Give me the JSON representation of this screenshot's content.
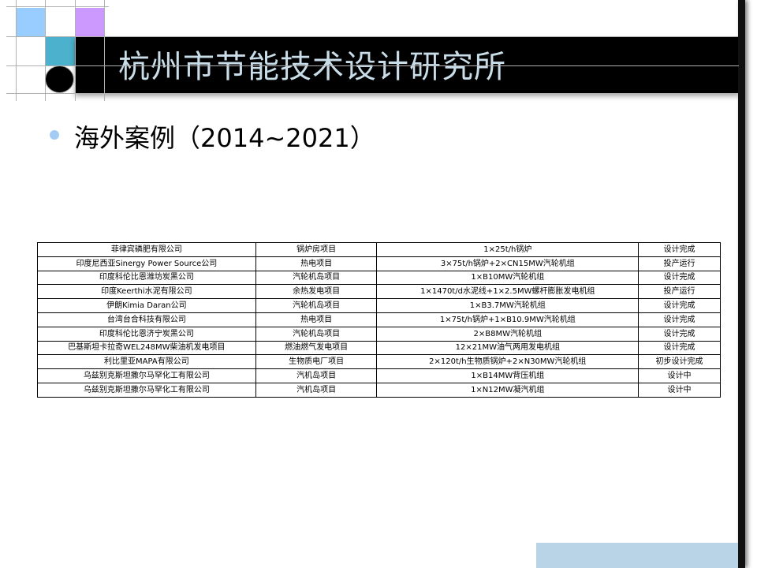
{
  "slide": {
    "title": "杭州市节能技术设计研究所",
    "bullet": "海外案例（2014~2021）",
    "colors": {
      "light_blue": "#99ccff",
      "purple": "#cc99ff",
      "teal": "#4bb1cc",
      "title_bar": "#000000",
      "title_text": "#c9dde9",
      "bullet": "#a3ccf5",
      "footer_block": "#b8d4e6"
    }
  },
  "table": {
    "rows": [
      [
        "菲律宾磷肥有限公司",
        "锅炉房项目",
        "1×25t/h锅炉",
        "设计完成"
      ],
      [
        "印度尼西亚Sinergy Power Source公司",
        "热电项目",
        "3×75t/h锅炉+2×CN15MW汽轮机组",
        "投产运行"
      ],
      [
        "印度科伦比恩潍坊炭黑公司",
        "汽轮机岛项目",
        "1×B10MW汽轮机组",
        "设计完成"
      ],
      [
        "印度Keerthi水泥有限公司",
        "余热发电项目",
        "1×1470t/d水泥线+1×2.5MW螺杆膨胀发电机组",
        "投产运行"
      ],
      [
        "伊朗Kimia Daran公司",
        "汽轮机岛项目",
        "1×B3.7MW汽轮机组",
        "设计完成"
      ],
      [
        "台湾台合科技有限公司",
        "热电项目",
        "1×75t/h锅炉+1×B10.9MW汽轮机组",
        "设计完成"
      ],
      [
        "印度科伦比恩济宁炭黑公司",
        "汽轮机岛项目",
        "2×B8MW汽轮机组",
        "设计完成"
      ],
      [
        "巴基斯坦卡拉奇WEL248MW柴油机发电项目",
        "燃油燃气发电项目",
        "12×21MW油气两用发电机组",
        "设计完成"
      ],
      [
        "利比里亚MAPA有限公司",
        "生物质电厂项目",
        "2×120t/h生物质锅炉+2×N30MW汽轮机组",
        "初步设计完成"
      ],
      [
        "乌兹别克斯坦撒尔马罕化工有限公司",
        "汽机岛项目",
        "1×B14MW背压机组",
        "设计中"
      ],
      [
        "乌兹别克斯坦撒尔马罕化工有限公司",
        "汽机岛项目",
        "1×N12MW凝汽机组",
        "设计中"
      ]
    ]
  }
}
